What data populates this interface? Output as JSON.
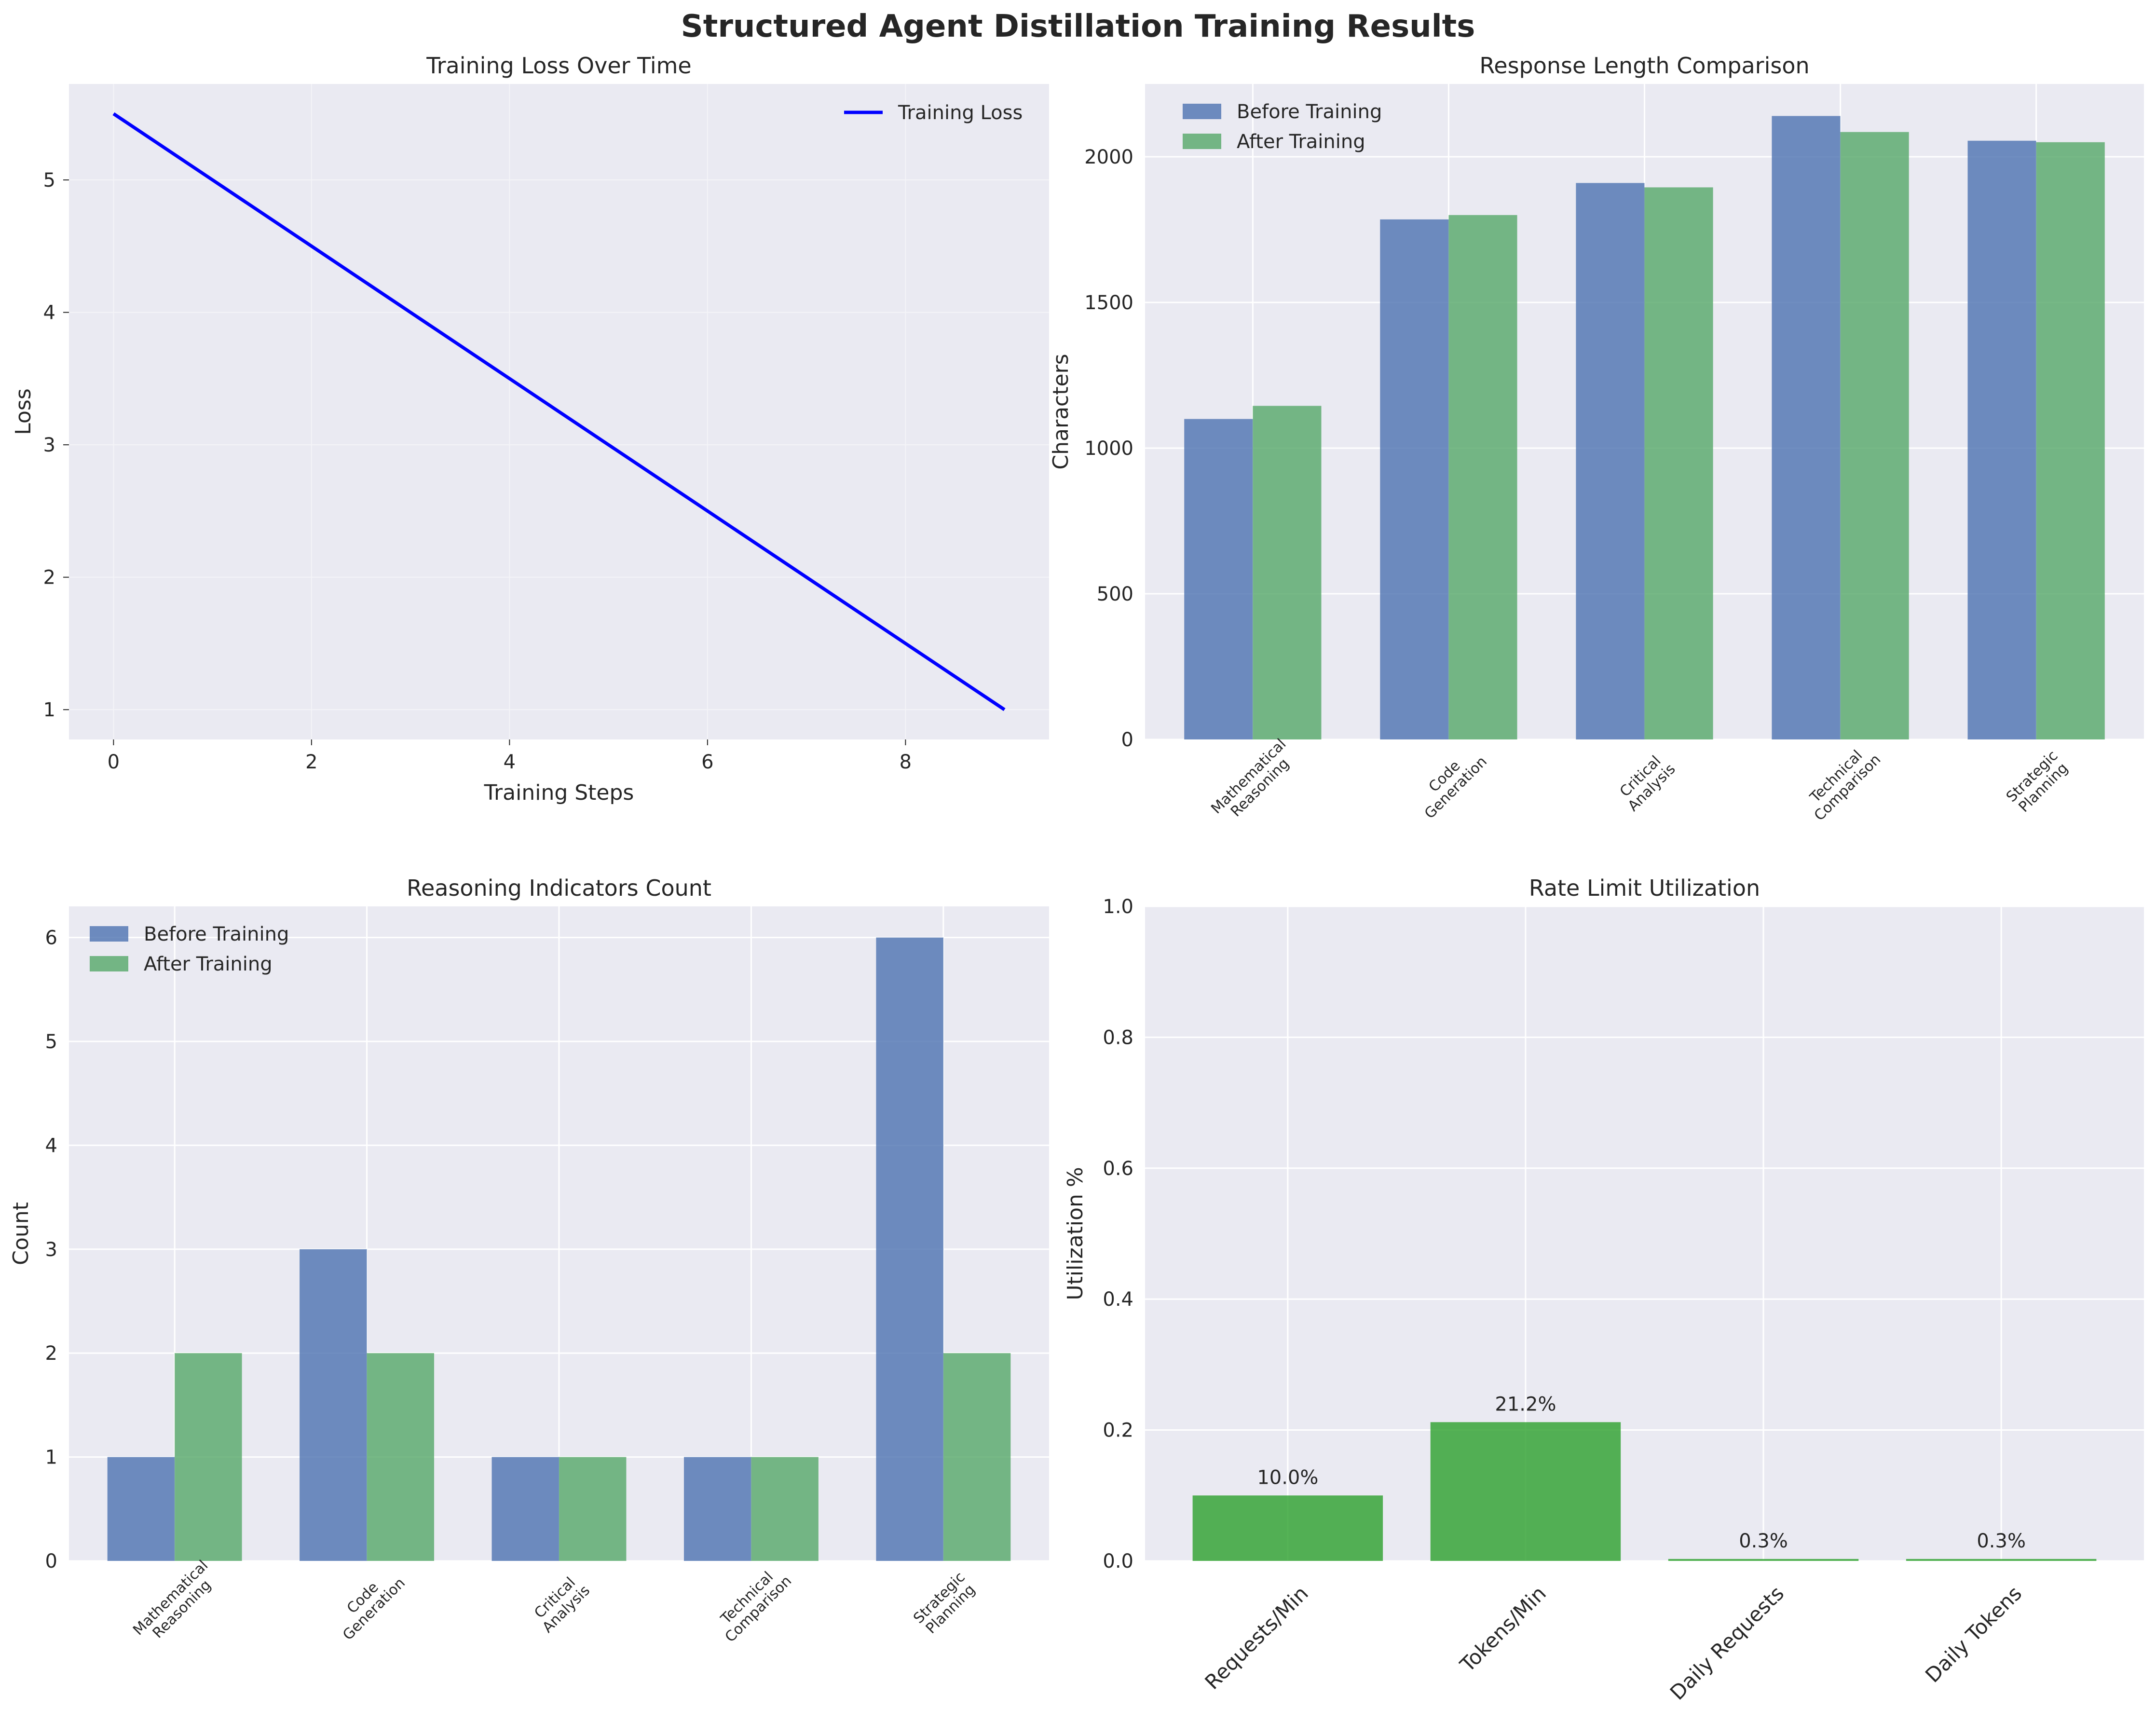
{
  "suptitle": "Structured Agent Distillation Training Results",
  "colors": {
    "panel_bg": "#eaeaf2",
    "grid": "#ffffff",
    "before": "#4c72b0",
    "after": "#55a868",
    "loss_line": "#0000ff",
    "util_bar": "#2ca02c"
  },
  "chart_data": [
    {
      "type": "line",
      "title": "Training Loss Over Time",
      "xlabel": "Training Steps",
      "ylabel": "Loss",
      "xlim": [
        -0.45,
        9.45
      ],
      "ylim": [
        0.775,
        5.725
      ],
      "xticks": [
        0,
        2,
        4,
        6,
        8
      ],
      "yticks": [
        1,
        2,
        3,
        4,
        5
      ],
      "legend_position": "top-right",
      "grid": true,
      "series": [
        {
          "name": "Training Loss",
          "x": [
            0,
            1,
            2,
            3,
            4,
            5,
            6,
            7,
            8,
            9
          ],
          "y": [
            5.5,
            5.0,
            4.5,
            4.0,
            3.5,
            3.0,
            2.5,
            2.0,
            1.5,
            1.0
          ]
        }
      ]
    },
    {
      "type": "bar",
      "title": "Response Length Comparison",
      "xlabel": "",
      "ylabel": "Characters",
      "ylim": [
        0,
        2250
      ],
      "yticks": [
        0,
        500,
        1000,
        1500,
        2000
      ],
      "legend_position": "top-left",
      "grid": true,
      "categories": [
        "Mathematical\nReasoning",
        "Code\nGeneration",
        "Critical\nAnalysis",
        "Technical\nComparison",
        "Strategic\nPlanning"
      ],
      "series": [
        {
          "name": "Before Training",
          "values": [
            1100,
            1785,
            1910,
            2140,
            2055
          ]
        },
        {
          "name": "After Training",
          "values": [
            1145,
            1800,
            1895,
            2085,
            2050
          ]
        }
      ]
    },
    {
      "type": "bar",
      "title": "Reasoning Indicators Count",
      "xlabel": "",
      "ylabel": "Count",
      "ylim": [
        0,
        6.3
      ],
      "yticks": [
        0,
        1,
        2,
        3,
        4,
        5,
        6
      ],
      "legend_position": "top-left",
      "grid": true,
      "categories": [
        "Mathematical\nReasoning",
        "Code\nGeneration",
        "Critical\nAnalysis",
        "Technical\nComparison",
        "Strategic\nPlanning"
      ],
      "series": [
        {
          "name": "Before Training",
          "values": [
            1,
            3,
            1,
            1,
            6
          ]
        },
        {
          "name": "After Training",
          "values": [
            2,
            2,
            1,
            1,
            2
          ]
        }
      ]
    },
    {
      "type": "bar",
      "title": "Rate Limit Utilization",
      "xlabel": "",
      "ylabel": "Utilization %",
      "ylim": [
        0,
        1.0
      ],
      "yticks": [
        0.0,
        0.2,
        0.4,
        0.6,
        0.8,
        1.0
      ],
      "grid": true,
      "categories": [
        "Requests/Min",
        "Tokens/Min",
        "Daily Requests",
        "Daily Tokens"
      ],
      "values": [
        0.1,
        0.212,
        0.003,
        0.003
      ],
      "data_labels": [
        "10.0%",
        "21.2%",
        "0.3%",
        "0.3%"
      ]
    }
  ]
}
